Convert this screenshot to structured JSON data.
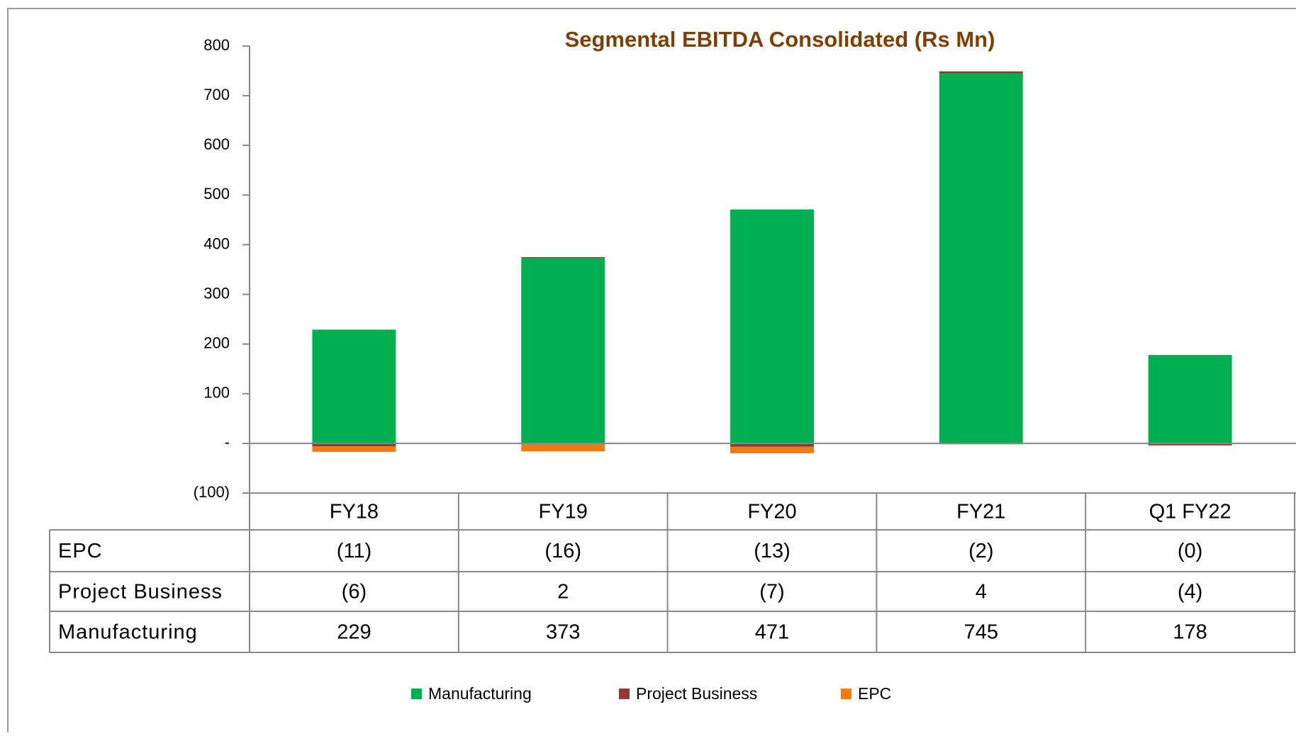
{
  "chart_data": {
    "type": "stacked_bar",
    "title": "Segmental  EBITDA  Consolidated (Rs Mn)",
    "categories": [
      "FY18",
      "FY19",
      "FY20",
      "FY21",
      "Q1 FY22"
    ],
    "series": [
      {
        "name": "Manufacturing",
        "color": "#00b050",
        "values": [
          229,
          373,
          471,
          745,
          178
        ],
        "value_labels": [
          "229",
          "373",
          "471",
          "745",
          "178"
        ]
      },
      {
        "name": "Project Business",
        "color": "#953735",
        "values": [
          -6,
          2,
          -7,
          4,
          -4
        ],
        "value_labels": [
          "(6)",
          "2",
          "(7)",
          "4",
          "(4)"
        ]
      },
      {
        "name": "EPC",
        "color": "#f07b15",
        "values": [
          -11,
          -16,
          -13,
          -2,
          -0.4
        ],
        "value_labels": [
          "(11)",
          "(16)",
          "(13)",
          "(2)",
          "(0)"
        ]
      }
    ],
    "ylim": [
      -100,
      800
    ],
    "yticks": [
      {
        "value": -100,
        "label": "(100)"
      },
      {
        "value": 0,
        "label": "-"
      },
      100,
      200,
      300,
      400,
      500,
      600,
      700,
      800
    ],
    "legend": "bottom"
  }
}
